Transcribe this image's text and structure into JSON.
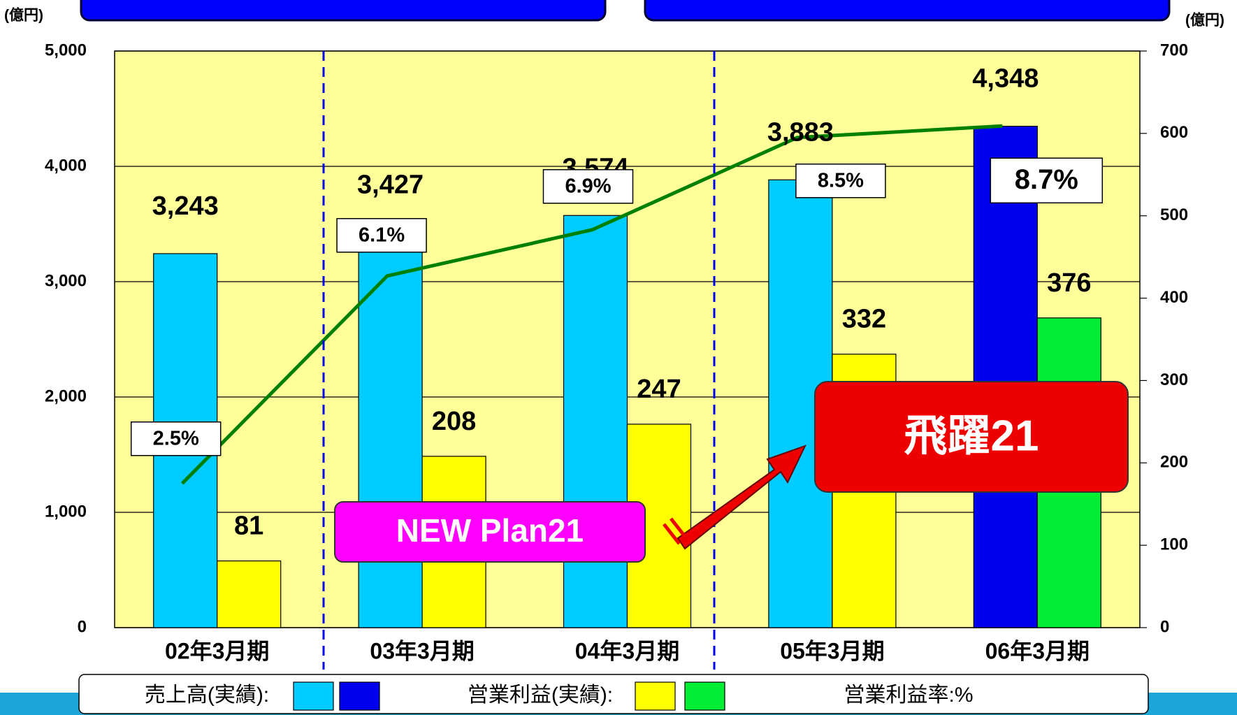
{
  "chart_data": {
    "type": "bar_line",
    "unit_left": "(億円)",
    "unit_right": "(億円)",
    "categories": [
      "02年3月期",
      "03年3月期",
      "04年3月期",
      "05年3月期",
      "06年3月期"
    ],
    "series": [
      {
        "name": "売上高(実績):",
        "colors": [
          "#00ccff",
          "#00ccff",
          "#00ccff",
          "#00ccff",
          "#0000ee"
        ],
        "values": [
          3243,
          3427,
          3574,
          3883,
          4348
        ],
        "value_labels": [
          "3,243",
          "3,427",
          "3,574",
          "3,883",
          "4,348"
        ]
      },
      {
        "name": "営業利益(実績):",
        "axis": "y2",
        "colors": [
          "#ffff00",
          "#ffff00",
          "#ffff00",
          "#ffff00",
          "#00ee33"
        ],
        "values": [
          81,
          208,
          247,
          332,
          376
        ]
      },
      {
        "name": "営業利益率:%",
        "axis": "y3",
        "color": "#008000",
        "values": [
          2.5,
          6.1,
          6.9,
          8.5,
          8.7
        ],
        "value_labels": [
          "2.5%",
          "6.1%",
          "6.9%",
          "8.5%",
          "8.7%"
        ]
      }
    ],
    "ylim": [
      0,
      5000
    ],
    "yticks": [
      0,
      {
        "value": 1000,
        "label": "1,000"
      },
      {
        "value": 2000,
        "label": "2,000"
      },
      {
        "value": 3000,
        "label": "3,000"
      },
      {
        "value": 4000,
        "label": "4,000"
      },
      {
        "value": 5000,
        "label": "5,000"
      }
    ],
    "y2lim": [
      0,
      700
    ],
    "y2ticks": [
      0,
      100,
      200,
      300,
      400,
      500,
      600,
      700
    ],
    "y3lim": [
      0,
      10
    ],
    "annotations": [
      "NEW Plan21",
      "飛躍21"
    ],
    "grid": true
  }
}
